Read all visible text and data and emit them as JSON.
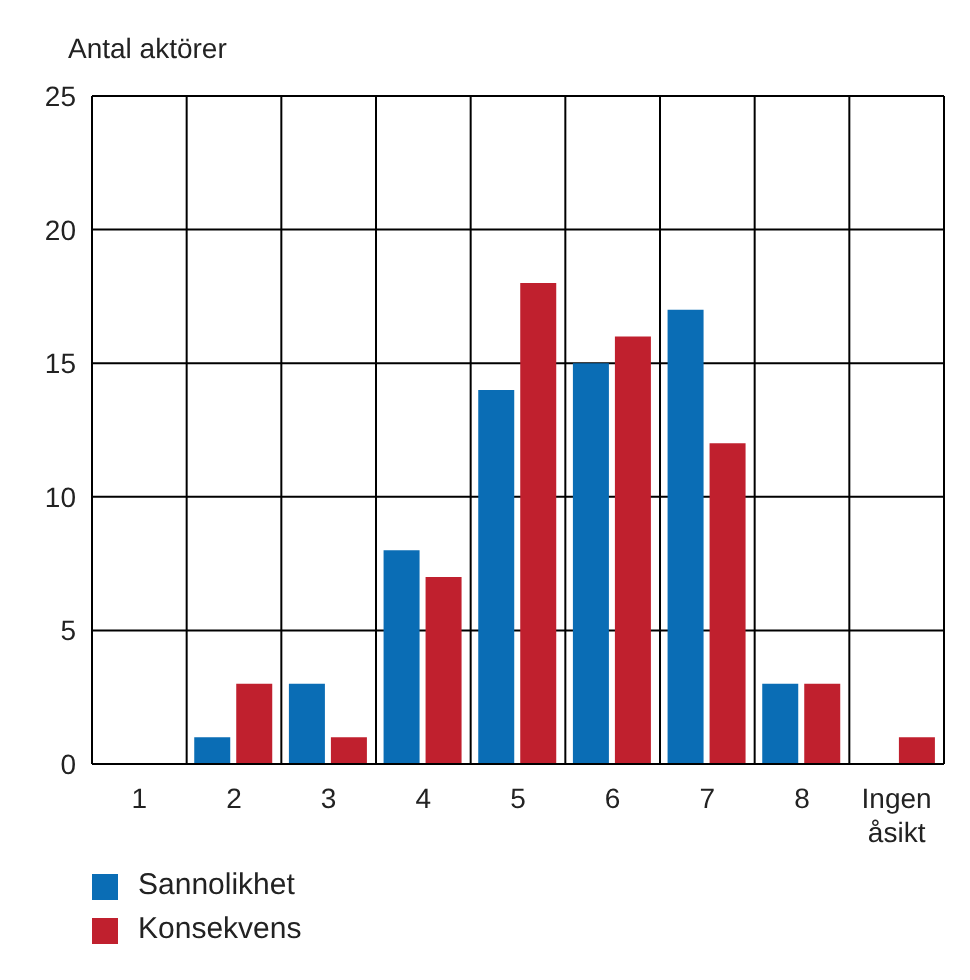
{
  "chart_data": {
    "type": "bar",
    "ylabel": "Antal aktörer",
    "categories": [
      "1",
      "2",
      "3",
      "4",
      "5",
      "6",
      "7",
      "8",
      "Ingen åsikt"
    ],
    "series": [
      {
        "name": "Sannolikhet",
        "color": "#0a6db5",
        "values": [
          0,
          1,
          3,
          8,
          14,
          15,
          17,
          3,
          0
        ]
      },
      {
        "name": "Konsekvens",
        "color": "#c0202e",
        "values": [
          0,
          3,
          1,
          7,
          18,
          16,
          12,
          3,
          1
        ]
      }
    ],
    "ylim": [
      0,
      25
    ],
    "yticks": [
      0,
      5,
      10,
      15,
      20,
      25
    ],
    "grid": true,
    "legend": "bottom left"
  }
}
